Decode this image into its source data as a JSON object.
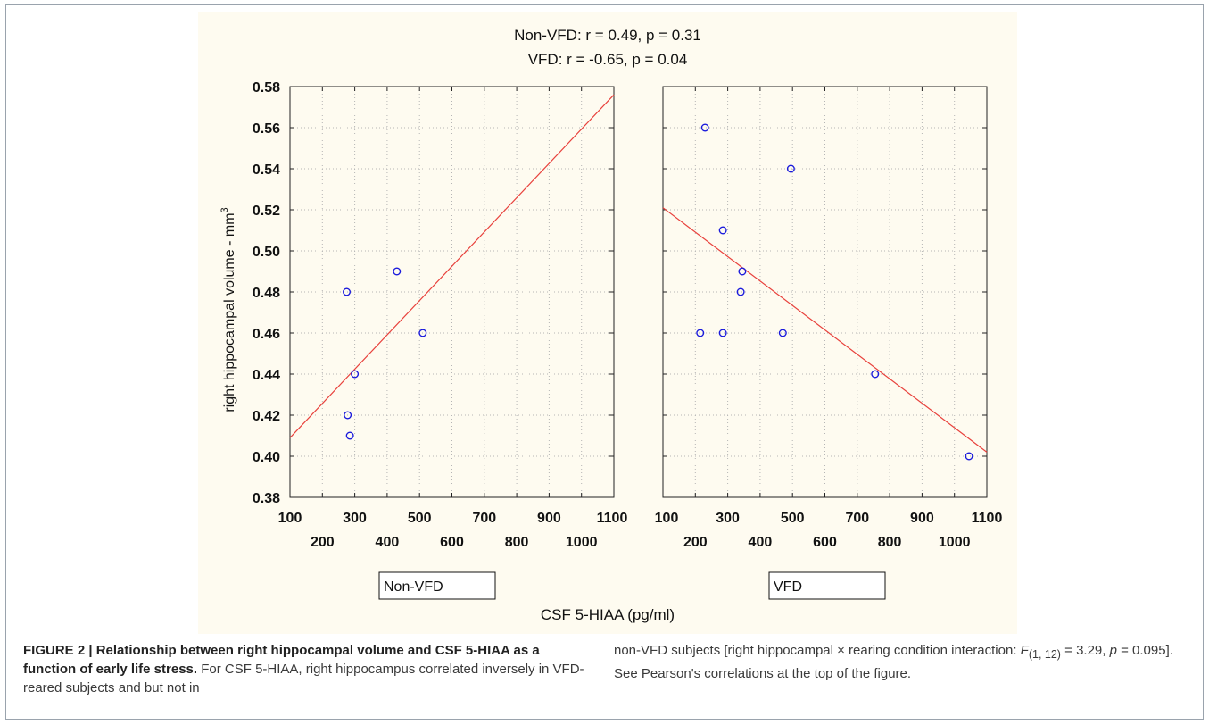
{
  "chart_data": {
    "type": "scatter",
    "title_lines": [
      "Non-VFD:   r = 0.49, p = 0.31",
      "VFD:   r = -0.65, p = 0.04"
    ],
    "ylabel": "right hippocampal volume - mm",
    "ylabel_superscript": "3",
    "xlabel": "CSF 5-HIAA  (pg/ml)",
    "ylim": [
      0.38,
      0.58
    ],
    "xlim": [
      100,
      1100
    ],
    "y_ticks": [
      "0.58",
      "0.56",
      "0.54",
      "0.52",
      "0.50",
      "0.48",
      "0.46",
      "0.44",
      "0.42",
      "0.40",
      "0.38"
    ],
    "x_ticks_upper": [
      "100",
      "300",
      "500",
      "700",
      "900",
      "1100"
    ],
    "x_ticks_lower": [
      "200",
      "400",
      "600",
      "800",
      "1000"
    ],
    "grid": true,
    "panels": [
      {
        "name": "Non-VFD",
        "points": [
          [
            275,
            0.48
          ],
          [
            278,
            0.42
          ],
          [
            285,
            0.41
          ],
          [
            300,
            0.44
          ],
          [
            430,
            0.49
          ],
          [
            510,
            0.46
          ]
        ],
        "fit_line": [
          [
            100,
            0.409
          ],
          [
            1100,
            0.576
          ]
        ]
      },
      {
        "name": "VFD",
        "points": [
          [
            230,
            0.56
          ],
          [
            215,
            0.46
          ],
          [
            285,
            0.51
          ],
          [
            285,
            0.46
          ],
          [
            345,
            0.49
          ],
          [
            340,
            0.48
          ],
          [
            470,
            0.46
          ],
          [
            495,
            0.54
          ],
          [
            755,
            0.44
          ],
          [
            1045,
            0.4
          ]
        ],
        "fit_line": [
          [
            100,
            0.521
          ],
          [
            1100,
            0.402
          ]
        ]
      }
    ],
    "colors": {
      "background": "#fefbf0",
      "points": "#1a1adc",
      "fit": "#e8413c"
    }
  },
  "caption": {
    "figure_label": "FIGURE 2 | Relationship between right hippocampal volume and CSF 5-HIAA as a function of early life stress.",
    "left_text": " For CSF 5-HIAA, right hippocampus correlated inversely in VFD-reared subjects and but not in",
    "right_part1": "non-VFD subjects [right hippocampal × rearing condition interaction: ",
    "right_F": "F",
    "right_F_sub": "(1,  12)",
    "right_part2": " = 3.29,  ",
    "right_p": "p",
    "right_part3": " = 0.095]. See Pearson's correlations at the top of the figure."
  }
}
